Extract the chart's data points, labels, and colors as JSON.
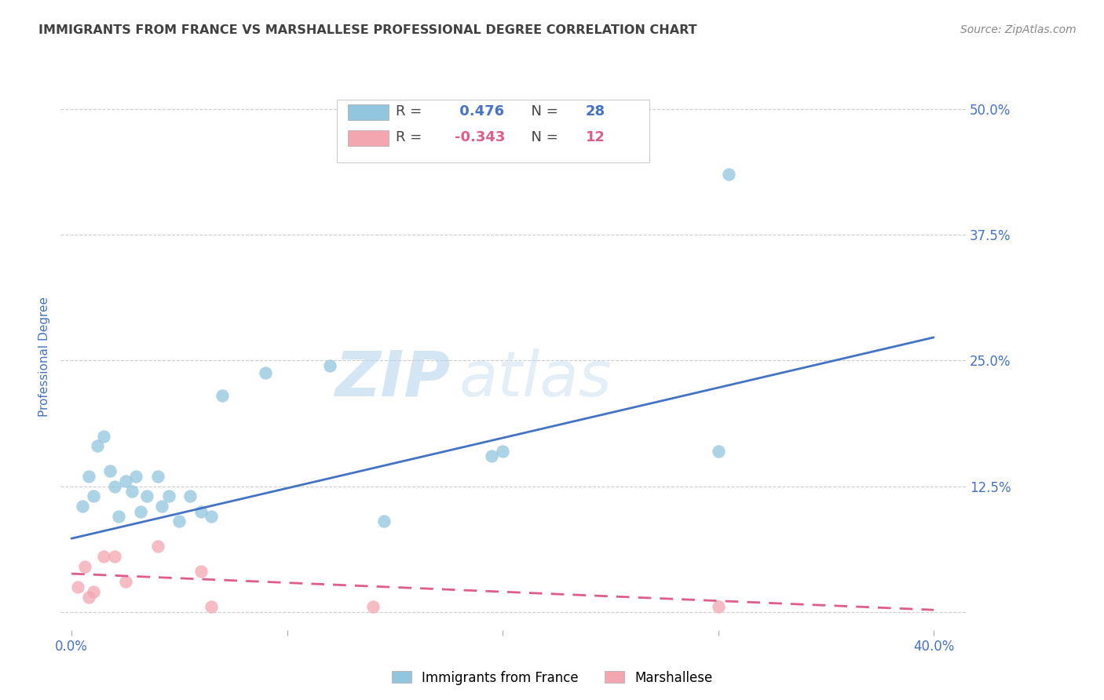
{
  "title": "IMMIGRANTS FROM FRANCE VS MARSHALLESE PROFESSIONAL DEGREE CORRELATION CHART",
  "source": "Source: ZipAtlas.com",
  "ylabel": "Professional Degree",
  "yticks": [
    0.0,
    0.125,
    0.25,
    0.375,
    0.5
  ],
  "ytick_labels": [
    "",
    "12.5%",
    "25.0%",
    "37.5%",
    "50.0%"
  ],
  "xticks": [
    0.0,
    0.1,
    0.2,
    0.3,
    0.4
  ],
  "xtick_labels": [
    "0.0%",
    "",
    "",
    "",
    "40.0%"
  ],
  "blue_r": 0.476,
  "blue_n": 28,
  "pink_r": -0.343,
  "pink_n": 12,
  "blue_color": "#92c5de",
  "pink_color": "#f4a6b0",
  "line_blue": "#4472c4",
  "line_pink": "#e05c8a",
  "watermark_zip": "ZIP",
  "watermark_atlas": "atlas",
  "blue_scatter_x": [
    0.005,
    0.008,
    0.01,
    0.012,
    0.015,
    0.018,
    0.02,
    0.022,
    0.025,
    0.028,
    0.03,
    0.032,
    0.035,
    0.04,
    0.042,
    0.045,
    0.05,
    0.055,
    0.06,
    0.065,
    0.07,
    0.09,
    0.12,
    0.145,
    0.195,
    0.2,
    0.3,
    0.305
  ],
  "blue_scatter_y": [
    0.105,
    0.135,
    0.115,
    0.165,
    0.175,
    0.14,
    0.125,
    0.095,
    0.13,
    0.12,
    0.135,
    0.1,
    0.115,
    0.135,
    0.105,
    0.115,
    0.09,
    0.115,
    0.1,
    0.095,
    0.215,
    0.238,
    0.245,
    0.09,
    0.155,
    0.16,
    0.16,
    0.435
  ],
  "pink_scatter_x": [
    0.003,
    0.006,
    0.008,
    0.01,
    0.015,
    0.02,
    0.025,
    0.04,
    0.06,
    0.065,
    0.14,
    0.3
  ],
  "pink_scatter_y": [
    0.025,
    0.045,
    0.015,
    0.02,
    0.055,
    0.055,
    0.03,
    0.065,
    0.04,
    0.005,
    0.005,
    0.005
  ],
  "blue_line_x": [
    0.0,
    0.4
  ],
  "blue_line_y": [
    0.073,
    0.273
  ],
  "pink_line_x": [
    0.0,
    0.4
  ],
  "pink_line_y": [
    0.038,
    0.002
  ],
  "background_color": "#ffffff",
  "grid_color": "#c8c8c8",
  "title_color": "#404040",
  "axis_label_color": "#4472c4",
  "source_color": "#888888",
  "scatter_size": 140
}
